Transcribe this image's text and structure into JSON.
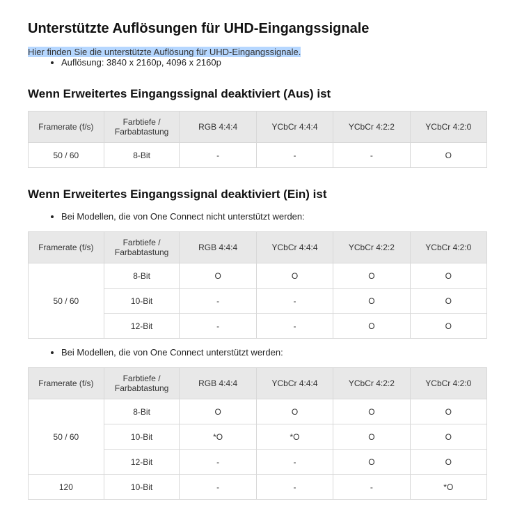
{
  "page": {
    "title": "Unterstützte Auflösungen für UHD-Eingangssignale",
    "subtitle": "Hier finden Sie die unterstützte Auflösung für UHD-Eingangssignale.",
    "resolution_bullet": "Auflösung: 3840 x 2160p, 4096 x 2160p"
  },
  "section_aus": {
    "heading": "Wenn Erweitertes Eingangssignal deaktiviert (Aus) ist",
    "table": {
      "columns": [
        "Framerate (f/s)",
        "Farbtiefe / Farbabtastung",
        "RGB 4:4:4",
        "YCbCr 4:4:4",
        "YCbCr 4:2:2",
        "YCbCr 4:2:0"
      ],
      "rows": [
        {
          "framerate": "50 / 60",
          "depth": "8-Bit",
          "rgb444": "-",
          "ycbcr444": "-",
          "ycbcr422": "-",
          "ycbcr420": "O"
        }
      ]
    }
  },
  "section_ein": {
    "heading": "Wenn Erweitertes Eingangssignal deaktiviert (Ein) ist",
    "note_no_oneconnect": "Bei Modellen, die von One Connect nicht unterstützt werden:",
    "table_no_oneconnect": {
      "columns": [
        "Framerate (f/s)",
        "Farbtiefe / Farbabtastung",
        "RGB 4:4:4",
        "YCbCr 4:4:4",
        "YCbCr 4:2:2",
        "YCbCr 4:2:0"
      ],
      "framerate": "50 / 60",
      "rows": [
        {
          "depth": "8-Bit",
          "rgb444": "O",
          "ycbcr444": "O",
          "ycbcr422": "O",
          "ycbcr420": "O"
        },
        {
          "depth": "10-Bit",
          "rgb444": "-",
          "ycbcr444": "-",
          "ycbcr422": "O",
          "ycbcr420": "O"
        },
        {
          "depth": "12-Bit",
          "rgb444": "-",
          "ycbcr444": "-",
          "ycbcr422": "O",
          "ycbcr420": "O"
        }
      ]
    },
    "note_oneconnect": "Bei Modellen, die von One Connect unterstützt werden:",
    "table_oneconnect": {
      "columns": [
        "Framerate (f/s)",
        "Farbtiefe / Farbabtastung",
        "RGB 4:4:4",
        "YCbCr 4:4:4",
        "YCbCr 4:2:2",
        "YCbCr 4:2:0"
      ],
      "groups": [
        {
          "framerate": "50 / 60",
          "rows": [
            {
              "depth": "8-Bit",
              "rgb444": "O",
              "ycbcr444": "O",
              "ycbcr422": "O",
              "ycbcr420": "O"
            },
            {
              "depth": "10-Bit",
              "rgb444": "*O",
              "ycbcr444": "*O",
              "ycbcr422": "O",
              "ycbcr420": "O"
            },
            {
              "depth": "12-Bit",
              "rgb444": "-",
              "ycbcr444": "-",
              "ycbcr422": "O",
              "ycbcr420": "O"
            }
          ]
        },
        {
          "framerate": "120",
          "rows": [
            {
              "depth": "10-Bit",
              "rgb444": "-",
              "ycbcr444": "-",
              "ycbcr422": "-",
              "ycbcr420": "*O"
            }
          ]
        }
      ]
    }
  },
  "colors": {
    "header_bg": "#e8e8e8",
    "border": "#d8d8d8",
    "highlight_bg": "#b6d7ff",
    "text": "#222222",
    "background": "#ffffff"
  }
}
